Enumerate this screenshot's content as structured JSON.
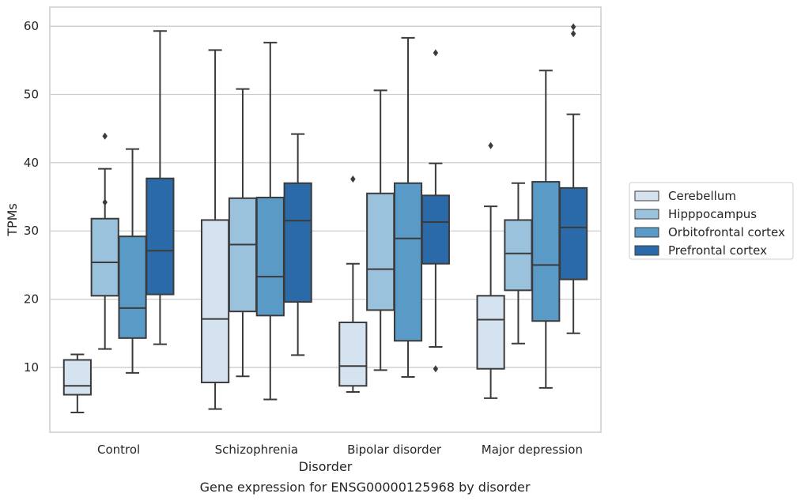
{
  "chart_data": {
    "type": "box",
    "title": "Gene expression for ENSG00000125968 by disorder",
    "xlabel": "Disorder",
    "ylabel": "TPMs",
    "ylim": [
      0.5,
      62.8
    ],
    "yticks": [
      10,
      20,
      30,
      40,
      50,
      60
    ],
    "grid": "horizontal",
    "legend_position": "right",
    "categories": [
      "Control",
      "Schizophrenia",
      "Bipolar disorder",
      "Major depression"
    ],
    "series": [
      {
        "name": "Cerebellum",
        "color": "#d5e3f1",
        "boxes": [
          {
            "whislo": 3.4,
            "q1": 6.0,
            "med": 7.3,
            "q3": 11.1,
            "whishi": 11.9,
            "fliers": []
          },
          {
            "whislo": 3.9,
            "q1": 7.8,
            "med": 17.1,
            "q3": 31.6,
            "whishi": 56.5,
            "fliers": []
          },
          {
            "whislo": 6.4,
            "q1": 7.3,
            "med": 10.2,
            "q3": 16.6,
            "whishi": 25.2,
            "fliers": [
              37.6
            ]
          },
          {
            "whislo": 5.5,
            "q1": 9.8,
            "med": 17.0,
            "q3": 20.5,
            "whishi": 33.6,
            "fliers": [
              42.5
            ]
          }
        ]
      },
      {
        "name": "Hipppocampus",
        "color": "#9ac2dc",
        "boxes": [
          {
            "whislo": 12.7,
            "q1": 20.5,
            "med": 25.4,
            "q3": 31.8,
            "whishi": 39.1,
            "fliers": [
              43.9,
              34.2
            ]
          },
          {
            "whislo": 8.7,
            "q1": 18.2,
            "med": 28.0,
            "q3": 34.8,
            "whishi": 50.8,
            "fliers": []
          },
          {
            "whislo": 9.6,
            "q1": 18.4,
            "med": 24.4,
            "q3": 35.5,
            "whishi": 50.6,
            "fliers": []
          },
          {
            "whislo": 13.5,
            "q1": 21.3,
            "med": 26.7,
            "q3": 31.6,
            "whishi": 37.0,
            "fliers": []
          }
        ]
      },
      {
        "name": "Orbitofrontal cortex",
        "color": "#5a9ac7",
        "boxes": [
          {
            "whislo": 9.2,
            "q1": 14.3,
            "med": 18.7,
            "q3": 29.2,
            "whishi": 42.0,
            "fliers": []
          },
          {
            "whislo": 5.3,
            "q1": 17.6,
            "med": 23.3,
            "q3": 34.9,
            "whishi": 57.6,
            "fliers": []
          },
          {
            "whislo": 8.6,
            "q1": 13.9,
            "med": 28.9,
            "q3": 37.0,
            "whishi": 58.3,
            "fliers": []
          },
          {
            "whislo": 7.0,
            "q1": 16.8,
            "med": 25.0,
            "q3": 37.2,
            "whishi": 53.5,
            "fliers": []
          }
        ]
      },
      {
        "name": "Prefrontal cortex",
        "color": "#2b6aa8",
        "boxes": [
          {
            "whislo": 13.4,
            "q1": 20.7,
            "med": 27.1,
            "q3": 37.7,
            "whishi": 59.3,
            "fliers": []
          },
          {
            "whislo": 11.8,
            "q1": 19.6,
            "med": 31.5,
            "q3": 37.0,
            "whishi": 44.2,
            "fliers": []
          },
          {
            "whislo": 13.0,
            "q1": 25.2,
            "med": 31.3,
            "q3": 35.2,
            "whishi": 39.9,
            "fliers": [
              56.1,
              9.8
            ]
          },
          {
            "whislo": 15.0,
            "q1": 22.9,
            "med": 30.5,
            "q3": 36.3,
            "whishi": 47.1,
            "fliers": [
              59.9,
              58.9
            ]
          }
        ]
      }
    ]
  }
}
